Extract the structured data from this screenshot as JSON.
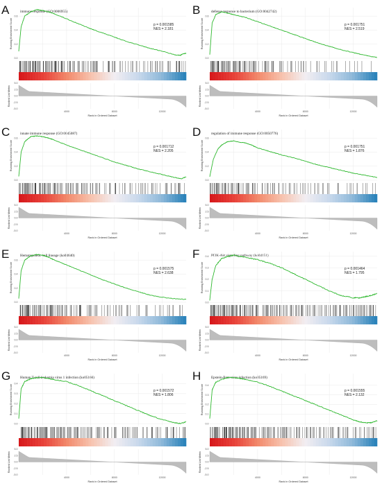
{
  "chart_data": [
    {
      "letter": "A",
      "type": "line",
      "title": "immune response (GO:0006955)",
      "p_label": "p = 0.001585",
      "nes_label": "NES = 2.181",
      "ylabel": "Running Enrichment Score",
      "ylabel2": "Ranked List Metric",
      "xlabel": "Rank in Ordered Dataset",
      "x_ticks": [
        "4000",
        "8000",
        "12000"
      ],
      "y_ticks": [
        "0.6",
        "0.4",
        "0.2",
        "0.0"
      ],
      "y2_ticks": [
        "5.0",
        "2.5",
        "0.0",
        "-2.5",
        "-5.0"
      ],
      "xlim": [
        0,
        14000
      ],
      "ylim": [
        -0.02,
        0.72
      ],
      "es_curve": {
        "x": [
          0,
          200,
          500,
          1000,
          1500,
          2000,
          2500,
          3000,
          4000,
          5000,
          6000,
          7000,
          8000,
          9000,
          10000,
          11000,
          12000,
          13000,
          13500,
          13700,
          14000
        ],
        "y": [
          0.1,
          0.45,
          0.6,
          0.66,
          0.69,
          0.68,
          0.66,
          0.63,
          0.56,
          0.49,
          0.42,
          0.36,
          0.3,
          0.24,
          0.19,
          0.14,
          0.1,
          0.05,
          0.04,
          0.06,
          0.07
        ]
      },
      "hit_density": [
        1.0,
        0.95,
        0.9,
        0.85,
        0.8,
        0.7,
        0.6,
        0.55,
        0.5,
        0.45,
        0.4,
        0.35,
        0.3,
        0.28,
        0.3,
        0.35,
        0.4,
        0.35,
        0.3,
        0.5
      ]
    },
    {
      "letter": "B",
      "type": "line",
      "title": "defense response to bacterium (GO:0042742)",
      "p_label": "p = 0.001751",
      "nes_label": "NES = 2.519",
      "ylabel": "Running Enrichment Score",
      "ylabel2": "Ranked List Metric",
      "xlabel": "Rank in Ordered Dataset",
      "x_ticks": [
        "4000",
        "8000",
        "12000"
      ],
      "y_ticks": [
        "0.6",
        "0.4",
        "0.2",
        "0.0"
      ],
      "y2_ticks": [
        "5.0",
        "2.5",
        "0.0",
        "-2.5",
        "-5.0"
      ],
      "xlim": [
        0,
        14000
      ],
      "ylim": [
        -0.02,
        0.72
      ],
      "es_curve": {
        "x": [
          0,
          200,
          500,
          1000,
          1500,
          2000,
          3000,
          4000,
          5000,
          6000,
          7000,
          8000,
          9000,
          10000,
          11000,
          12000,
          13000,
          14000
        ],
        "y": [
          0.05,
          0.5,
          0.62,
          0.66,
          0.64,
          0.62,
          0.58,
          0.52,
          0.46,
          0.4,
          0.34,
          0.28,
          0.22,
          0.17,
          0.12,
          0.08,
          0.04,
          0.01
        ]
      },
      "hit_density": [
        1.0,
        0.9,
        0.85,
        0.75,
        0.65,
        0.55,
        0.5,
        0.4,
        0.35,
        0.3,
        0.25,
        0.2,
        0.2,
        0.18,
        0.15,
        0.15,
        0.12,
        0.12,
        0.1,
        0.1
      ]
    },
    {
      "letter": "C",
      "type": "line",
      "title": "innate immune response (GO:0045087)",
      "p_label": "p = 0.001712",
      "nes_label": "NES = 2.205",
      "ylabel": "Running Enrichment Score",
      "ylabel2": "Ranked List Metric",
      "xlabel": "Rank in Ordered Dataset",
      "x_ticks": [
        "4000",
        "8000",
        "12000"
      ],
      "y_ticks": [
        "0.6",
        "0.4",
        "0.2",
        "0.0"
      ],
      "y2_ticks": [
        "5.0",
        "2.5",
        "0.0",
        "-2.5",
        "-5.0"
      ],
      "xlim": [
        0,
        14000
      ],
      "ylim": [
        -0.02,
        0.72
      ],
      "es_curve": {
        "x": [
          0,
          200,
          500,
          1000,
          1500,
          2000,
          2500,
          3000,
          4000,
          5000,
          6000,
          7000,
          8000,
          9000,
          10000,
          11000,
          12000,
          13000,
          13600,
          14000
        ],
        "y": [
          0.05,
          0.4,
          0.55,
          0.62,
          0.63,
          0.62,
          0.6,
          0.57,
          0.5,
          0.44,
          0.38,
          0.32,
          0.26,
          0.21,
          0.16,
          0.12,
          0.08,
          0.04,
          0.02,
          0.05
        ]
      },
      "hit_density": [
        1.0,
        0.9,
        0.85,
        0.8,
        0.7,
        0.6,
        0.55,
        0.5,
        0.45,
        0.4,
        0.35,
        0.3,
        0.28,
        0.3,
        0.32,
        0.35,
        0.3,
        0.28,
        0.25,
        0.4
      ]
    },
    {
      "letter": "D",
      "type": "line",
      "title": "regulation of immune response (GO:0050776)",
      "p_label": "p = 0.001751",
      "nes_label": "NES = 1.876",
      "ylabel": "Running Enrichment Score",
      "ylabel2": "Ranked List Metric",
      "xlabel": "Rank in Ordered Dataset",
      "x_ticks": [
        "4000",
        "8000",
        "12000"
      ],
      "y_ticks": [
        "0.6",
        "0.4",
        "0.2",
        "0.0"
      ],
      "y2_ticks": [
        "5.0",
        "2.5",
        "0.0",
        "-2.5",
        "-5.0"
      ],
      "xlim": [
        0,
        14000
      ],
      "ylim": [
        -0.02,
        0.72
      ],
      "es_curve": {
        "x": [
          0,
          300,
          700,
          1000,
          1500,
          2000,
          2500,
          3000,
          3500,
          4000,
          5000,
          6000,
          7000,
          8000,
          9000,
          10000,
          11000,
          12000,
          13000,
          14000
        ],
        "y": [
          0.05,
          0.3,
          0.45,
          0.5,
          0.55,
          0.56,
          0.54,
          0.53,
          0.5,
          0.46,
          0.41,
          0.36,
          0.32,
          0.27,
          0.22,
          0.18,
          0.14,
          0.1,
          0.07,
          0.04
        ]
      },
      "hit_density": [
        0.9,
        0.7,
        0.6,
        0.55,
        0.5,
        0.45,
        0.4,
        0.35,
        0.3,
        0.3,
        0.28,
        0.25,
        0.25,
        0.22,
        0.2,
        0.2,
        0.18,
        0.2,
        0.18,
        0.15
      ]
    },
    {
      "letter": "E",
      "type": "line",
      "title": "Hematopoietic cell lineage (ko04640)",
      "p_label": "p = 0.001575",
      "nes_label": "NES = 2.638",
      "ylabel": "Running Enrichment Score",
      "ylabel2": "Ranked List Metric",
      "xlabel": "Rank in Ordered Dataset",
      "x_ticks": [
        "4000",
        "8000",
        "12000"
      ],
      "y_ticks": [
        "0.6",
        "0.4",
        "0.2",
        "0.0"
      ],
      "y2_ticks": [
        "5.0",
        "2.5",
        "0.0",
        "-2.5",
        "-5.0"
      ],
      "xlim": [
        0,
        14000
      ],
      "ylim": [
        -0.02,
        0.72
      ],
      "es_curve": {
        "x": [
          0,
          200,
          500,
          1000,
          1500,
          2000,
          2500,
          3000,
          4000,
          5000,
          6000,
          7000,
          8000,
          9000,
          10000,
          11000,
          12000,
          13000,
          14000
        ],
        "y": [
          0.05,
          0.45,
          0.6,
          0.66,
          0.68,
          0.67,
          0.64,
          0.6,
          0.53,
          0.46,
          0.39,
          0.32,
          0.26,
          0.2,
          0.15,
          0.1,
          0.07,
          0.05,
          0.04
        ]
      },
      "hit_density": [
        1.0,
        0.95,
        0.85,
        0.75,
        0.65,
        0.55,
        0.5,
        0.45,
        0.4,
        0.35,
        0.3,
        0.28,
        0.25,
        0.22,
        0.2,
        0.25,
        0.2,
        0.2,
        0.18,
        0.2
      ]
    },
    {
      "letter": "F",
      "type": "line",
      "title": "PI3K-Akt signaling pathway (ko04151)",
      "p_label": "p = 0.001464",
      "nes_label": "NES = 1.795",
      "ylabel": "Running Enrichment Score",
      "ylabel2": "Ranked List Metric",
      "xlabel": "Rank in Ordered Dataset",
      "x_ticks": [
        "4000",
        "8000",
        "12000"
      ],
      "y_ticks": [
        "0.4",
        "0.3",
        "0.2",
        "0.1",
        "0.0"
      ],
      "y2_ticks": [
        "5.0",
        "2.5",
        "0.0",
        "-2.5",
        "-5.0"
      ],
      "xlim": [
        0,
        14000
      ],
      "ylim": [
        -0.01,
        0.44
      ],
      "es_curve": {
        "x": [
          0,
          200,
          500,
          1000,
          1500,
          2000,
          2500,
          3000,
          4000,
          5000,
          6000,
          7000,
          8000,
          9000,
          10000,
          11000,
          12000,
          12500,
          13000,
          13500,
          14000
        ],
        "y": [
          0.02,
          0.2,
          0.32,
          0.38,
          0.4,
          0.41,
          0.4,
          0.39,
          0.37,
          0.34,
          0.3,
          0.25,
          0.2,
          0.15,
          0.1,
          0.06,
          0.04,
          0.04,
          0.05,
          0.06,
          0.08
        ]
      },
      "hit_density": [
        1.0,
        0.9,
        0.85,
        0.8,
        0.7,
        0.65,
        0.6,
        0.6,
        0.55,
        0.55,
        0.5,
        0.5,
        0.5,
        0.45,
        0.5,
        0.5,
        0.55,
        0.55,
        0.6,
        0.65
      ]
    },
    {
      "letter": "G",
      "type": "line",
      "title": "Human T-cell leukemia virus 1 infection (ko05166)",
      "p_label": "p = 0.001572",
      "nes_label": "NES = 1.806",
      "ylabel": "Running Enrichment Score",
      "ylabel2": "Ranked List Metric",
      "xlabel": "Rank in Ordered Dataset",
      "x_ticks": [
        "4000",
        "8000",
        "12000"
      ],
      "y_ticks": [
        "0.4",
        "0.3",
        "0.2",
        "0.1",
        "0.0"
      ],
      "y2_ticks": [
        "5.0",
        "2.5",
        "0.0",
        "-2.5",
        "-5.0"
      ],
      "xlim": [
        0,
        14000
      ],
      "ylim": [
        -0.02,
        0.5
      ],
      "es_curve": {
        "x": [
          0,
          200,
          500,
          1000,
          1500,
          2000,
          2500,
          3000,
          4000,
          5000,
          6000,
          7000,
          8000,
          9000,
          10000,
          11000,
          12000,
          13000,
          13500,
          14000
        ],
        "y": [
          0.05,
          0.35,
          0.42,
          0.45,
          0.46,
          0.46,
          0.45,
          0.44,
          0.42,
          0.38,
          0.33,
          0.28,
          0.23,
          0.18,
          0.13,
          0.08,
          0.04,
          0.01,
          0.0,
          0.02
        ]
      },
      "hit_density": [
        1.0,
        0.95,
        0.9,
        0.85,
        0.75,
        0.7,
        0.65,
        0.6,
        0.55,
        0.5,
        0.5,
        0.45,
        0.45,
        0.4,
        0.4,
        0.4,
        0.35,
        0.35,
        0.4,
        0.45
      ]
    },
    {
      "letter": "H",
      "type": "line",
      "title": "Epstein-Barr virus infection (ko05169)",
      "p_label": "p = 0.001555",
      "nes_label": "NES = 2.132",
      "ylabel": "Running Enrichment Score",
      "ylabel2": "Ranked List Metric",
      "xlabel": "Rank in Ordered Dataset",
      "x_ticks": [
        "4000",
        "8000",
        "12000"
      ],
      "y_ticks": [
        "0.4",
        "0.3",
        "0.2",
        "0.1",
        "0.0"
      ],
      "y2_ticks": [
        "5.0",
        "2.5",
        "0.0",
        "-2.5",
        "-5.0"
      ],
      "xlim": [
        0,
        14000
      ],
      "ylim": [
        -0.02,
        0.52
      ],
      "es_curve": {
        "x": [
          0,
          200,
          500,
          1000,
          1500,
          2000,
          2500,
          3000,
          4000,
          5000,
          6000,
          7000,
          8000,
          9000,
          10000,
          11000,
          12000,
          12500,
          13000,
          13500,
          14000
        ],
        "y": [
          0.05,
          0.35,
          0.43,
          0.46,
          0.48,
          0.48,
          0.47,
          0.46,
          0.43,
          0.39,
          0.34,
          0.29,
          0.24,
          0.19,
          0.14,
          0.09,
          0.04,
          0.02,
          0.01,
          0.01,
          0.03
        ]
      },
      "hit_density": [
        1.0,
        0.95,
        0.9,
        0.85,
        0.75,
        0.7,
        0.65,
        0.6,
        0.55,
        0.5,
        0.5,
        0.45,
        0.45,
        0.4,
        0.4,
        0.38,
        0.35,
        0.35,
        0.38,
        0.42
      ]
    }
  ],
  "colors": {
    "curve": "#2eb82e",
    "hits": "#111111",
    "metric_fill": "#bdbdbd",
    "grid": "#e4e4e4",
    "heat_stops": [
      "#d7191c",
      "#e8423a",
      "#f28a6c",
      "#f7c2ad",
      "#f2eef2",
      "#c9d9ec",
      "#8fb9da",
      "#2b83ba"
    ]
  }
}
